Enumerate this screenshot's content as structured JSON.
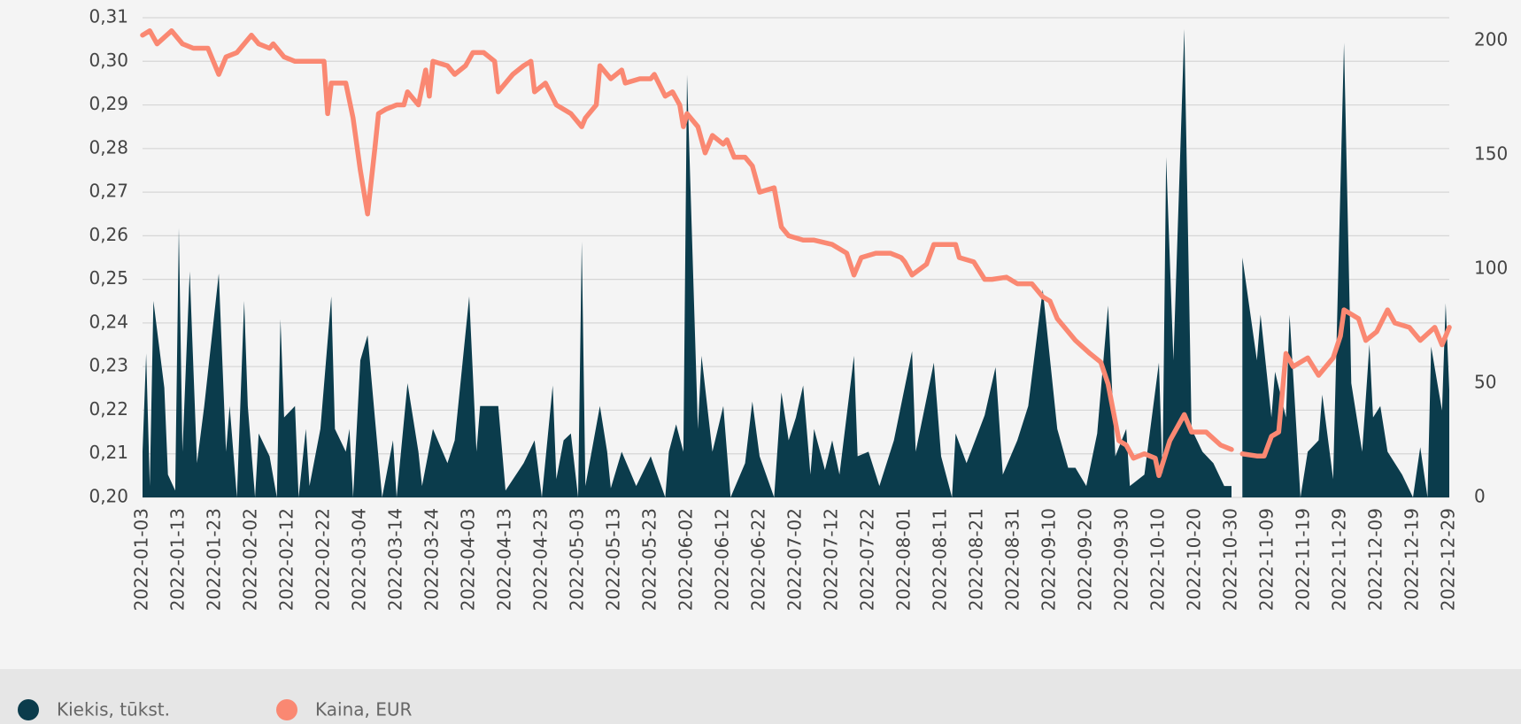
{
  "chart_data": {
    "type": "area-line",
    "xlim": [
      "2022-01-03",
      "2022-12-29"
    ],
    "xticks": [
      "2022-01-03",
      "2022-01-13",
      "2022-01-23",
      "2022-02-02",
      "2022-02-12",
      "2022-02-22",
      "2022-03-04",
      "2022-03-14",
      "2022-03-24",
      "2022-04-03",
      "2022-04-13",
      "2022-04-23",
      "2022-05-03",
      "2022-05-13",
      "2022-05-23",
      "2022-06-02",
      "2022-06-12",
      "2022-06-22",
      "2022-07-02",
      "2022-07-12",
      "2022-07-22",
      "2022-08-01",
      "2022-08-11",
      "2022-08-21",
      "2022-08-31",
      "2022-09-10",
      "2022-09-20",
      "2022-09-30",
      "2022-10-10",
      "2022-10-20",
      "2022-10-30",
      "2022-11-09",
      "2022-11-19",
      "2022-11-29",
      "2022-12-09",
      "2022-12-19",
      "2022-12-29"
    ],
    "ylim": [
      0.2,
      0.31
    ],
    "yticks": [
      {
        "value": 0.2,
        "label": "0,20"
      },
      {
        "value": 0.21,
        "label": "0,21"
      },
      {
        "value": 0.22,
        "label": "0,22"
      },
      {
        "value": 0.23,
        "label": "0,23"
      },
      {
        "value": 0.24,
        "label": "0,24"
      },
      {
        "value": 0.25,
        "label": "0,25"
      },
      {
        "value": 0.26,
        "label": "0,26"
      },
      {
        "value": 0.27,
        "label": "0,27"
      },
      {
        "value": 0.28,
        "label": "0,28"
      },
      {
        "value": 0.29,
        "label": "0,29"
      },
      {
        "value": 0.3,
        "label": "0,30"
      },
      {
        "value": 0.31,
        "label": "0,31"
      }
    ],
    "y2lim": [
      0,
      210
    ],
    "y2ticks": [
      0,
      50,
      100,
      150,
      200
    ],
    "grid": true,
    "legend": "bottom-left",
    "series": [
      {
        "name": "Kiekis, tūkst.",
        "color": "#0b3c4c",
        "kind": "area",
        "axis": "y2",
        "x": [
          "2022-01-03",
          "2022-01-04",
          "2022-01-05",
          "2022-01-06",
          "2022-01-09",
          "2022-01-10",
          "2022-01-12",
          "2022-01-13",
          "2022-01-14",
          "2022-01-16",
          "2022-01-18",
          "2022-01-20",
          "2022-01-24",
          "2022-01-26",
          "2022-01-27",
          "2022-01-29",
          "2022-01-31",
          "2022-02-01",
          "2022-02-03",
          "2022-02-04",
          "2022-02-07",
          "2022-02-09",
          "2022-02-10",
          "2022-02-11",
          "2022-02-14",
          "2022-02-15",
          "2022-02-17",
          "2022-02-18",
          "2022-02-21",
          "2022-02-24",
          "2022-02-25",
          "2022-02-28",
          "2022-03-01",
          "2022-03-02",
          "2022-03-04",
          "2022-03-06",
          "2022-03-08",
          "2022-03-10",
          "2022-03-13",
          "2022-03-14",
          "2022-03-17",
          "2022-03-20",
          "2022-03-21",
          "2022-03-24",
          "2022-03-28",
          "2022-03-30",
          "2022-04-03",
          "2022-04-05",
          "2022-04-06",
          "2022-04-11",
          "2022-04-13",
          "2022-04-18",
          "2022-04-21",
          "2022-04-23",
          "2022-04-26",
          "2022-04-27",
          "2022-04-29",
          "2022-05-01",
          "2022-05-03",
          "2022-05-04",
          "2022-05-05",
          "2022-05-09",
          "2022-05-11",
          "2022-05-12",
          "2022-05-15",
          "2022-05-19",
          "2022-05-23",
          "2022-05-27",
          "2022-05-28",
          "2022-05-30",
          "2022-06-01",
          "2022-06-02",
          "2022-06-05",
          "2022-06-06",
          "2022-06-09",
          "2022-06-12",
          "2022-06-14",
          "2022-06-18",
          "2022-06-20",
          "2022-06-22",
          "2022-06-26",
          "2022-06-28",
          "2022-06-30",
          "2022-07-02",
          "2022-07-04",
          "2022-07-06",
          "2022-07-07",
          "2022-07-10",
          "2022-07-12",
          "2022-07-14",
          "2022-07-18",
          "2022-07-19",
          "2022-07-22",
          "2022-07-25",
          "2022-07-29",
          "2022-08-03",
          "2022-08-04",
          "2022-08-09",
          "2022-08-11",
          "2022-08-14",
          "2022-08-15",
          "2022-08-18",
          "2022-08-23",
          "2022-08-26",
          "2022-08-28",
          "2022-09-01",
          "2022-09-04",
          "2022-09-08",
          "2022-09-12",
          "2022-09-15",
          "2022-09-17",
          "2022-09-20",
          "2022-09-23",
          "2022-09-26",
          "2022-09-28",
          "2022-10-01",
          "2022-10-02",
          "2022-10-06",
          "2022-10-10",
          "2022-10-11",
          "2022-10-12",
          "2022-10-14",
          "2022-10-17",
          "2022-10-19",
          "2022-10-22",
          "2022-10-25",
          "2022-10-28",
          "2022-10-30",
          "2022-10-31",
          "2022-11-02",
          "2022-11-06",
          "2022-11-07",
          "2022-11-10",
          "2022-11-11",
          "2022-11-14",
          "2022-11-15",
          "2022-11-18",
          "2022-11-20",
          "2022-11-23",
          "2022-11-24",
          "2022-11-27",
          "2022-11-30",
          "2022-12-02",
          "2022-12-05",
          "2022-12-07",
          "2022-12-08",
          "2022-12-10",
          "2022-12-12",
          "2022-12-16",
          "2022-12-19",
          "2022-12-21",
          "2022-12-23",
          "2022-12-24",
          "2022-12-27",
          "2022-12-28",
          "2022-12-29"
        ],
        "values": [
          20,
          63,
          5,
          86,
          48,
          10,
          3,
          118,
          20,
          99,
          15,
          40,
          98,
          20,
          40,
          0,
          86,
          40,
          0,
          28,
          18,
          0,
          78,
          35,
          40,
          0,
          30,
          5,
          30,
          88,
          30,
          20,
          30,
          0,
          60,
          71,
          35,
          0,
          25,
          0,
          50,
          20,
          5,
          30,
          15,
          25,
          88,
          20,
          40,
          40,
          3,
          15,
          25,
          0,
          49,
          8,
          25,
          28,
          0,
          112,
          5,
          40,
          20,
          4,
          20,
          5,
          18,
          0,
          20,
          32,
          20,
          185,
          30,
          62,
          20,
          40,
          0,
          15,
          42,
          18,
          0,
          46,
          25,
          35,
          49,
          10,
          30,
          12,
          25,
          10,
          62,
          18,
          20,
          5,
          25,
          64,
          20,
          59,
          18,
          0,
          28,
          15,
          36,
          57,
          10,
          25,
          40,
          91,
          30,
          13,
          13,
          5,
          28,
          84,
          18,
          30,
          5,
          10,
          59,
          10,
          149,
          60,
          205,
          30,
          20,
          15,
          5,
          5,
          null,
          105,
          60,
          80,
          35,
          55,
          35,
          80,
          0,
          20,
          25,
          45,
          8,
          199,
          50,
          20,
          67,
          35,
          40,
          20,
          10,
          0,
          22,
          0,
          66,
          38,
          85,
          47
        ]
      },
      {
        "name": "Kaina, EUR",
        "color": "#fa8872",
        "kind": "line",
        "x": [
          "2022-01-03",
          "2022-01-05",
          "2022-01-07",
          "2022-01-11",
          "2022-01-14",
          "2022-01-17",
          "2022-01-21",
          "2022-01-24",
          "2022-01-26",
          "2022-01-29",
          "2022-02-02",
          "2022-02-04",
          "2022-02-07",
          "2022-02-08",
          "2022-02-11",
          "2022-02-14",
          "2022-02-22",
          "2022-02-23",
          "2022-02-24",
          "2022-02-28",
          "2022-03-02",
          "2022-03-04",
          "2022-03-06",
          "2022-03-08",
          "2022-03-09",
          "2022-03-11",
          "2022-03-14",
          "2022-03-16",
          "2022-03-17",
          "2022-03-20",
          "2022-03-22",
          "2022-03-23",
          "2022-03-24",
          "2022-03-28",
          "2022-03-30",
          "2022-04-02",
          "2022-04-04",
          "2022-04-07",
          "2022-04-10",
          "2022-04-11",
          "2022-04-15",
          "2022-04-18",
          "2022-04-20",
          "2022-04-21",
          "2022-04-24",
          "2022-04-27",
          "2022-05-01",
          "2022-05-04",
          "2022-05-05",
          "2022-05-08",
          "2022-05-09",
          "2022-05-12",
          "2022-05-15",
          "2022-05-16",
          "2022-05-20",
          "2022-05-23",
          "2022-05-24",
          "2022-05-27",
          "2022-05-29",
          "2022-05-31",
          "2022-06-01",
          "2022-06-02",
          "2022-06-05",
          "2022-06-07",
          "2022-06-09",
          "2022-06-12",
          "2022-06-13",
          "2022-06-15",
          "2022-06-18",
          "2022-06-20",
          "2022-06-22",
          "2022-06-26",
          "2022-06-28",
          "2022-06-30",
          "2022-07-04",
          "2022-07-07",
          "2022-07-12",
          "2022-07-16",
          "2022-07-18",
          "2022-07-20",
          "2022-07-24",
          "2022-07-28",
          "2022-07-31",
          "2022-08-01",
          "2022-08-03",
          "2022-08-07",
          "2022-08-09",
          "2022-08-15",
          "2022-08-16",
          "2022-08-20",
          "2022-08-23",
          "2022-08-25",
          "2022-08-29",
          "2022-09-01",
          "2022-09-05",
          "2022-09-08",
          "2022-09-10",
          "2022-09-12",
          "2022-09-17",
          "2022-09-21",
          "2022-09-24",
          "2022-09-26",
          "2022-09-29",
          "2022-10-01",
          "2022-10-03",
          "2022-10-06",
          "2022-10-09",
          "2022-10-10",
          "2022-10-13",
          "2022-10-17",
          "2022-10-19",
          "2022-10-23",
          "2022-10-27",
          "2022-10-30",
          "2022-10-31",
          "2022-11-02",
          "2022-11-06",
          "2022-11-08",
          "2022-11-10",
          "2022-11-12",
          "2022-11-14",
          "2022-11-16",
          "2022-11-20",
          "2022-11-23",
          "2022-11-27",
          "2022-11-29",
          "2022-11-30",
          "2022-12-04",
          "2022-12-06",
          "2022-12-09",
          "2022-12-12",
          "2022-12-14",
          "2022-12-18",
          "2022-12-21",
          "2022-12-25",
          "2022-12-27",
          "2022-12-29"
        ],
        "values": [
          0.306,
          0.307,
          0.304,
          0.307,
          0.304,
          0.303,
          0.303,
          0.297,
          0.301,
          0.302,
          0.306,
          0.304,
          0.303,
          0.304,
          0.301,
          0.3,
          0.3,
          0.288,
          0.295,
          0.295,
          0.287,
          0.275,
          0.265,
          0.28,
          0.288,
          0.289,
          0.29,
          0.29,
          0.293,
          0.29,
          0.298,
          0.292,
          0.3,
          0.299,
          0.297,
          0.299,
          0.302,
          0.302,
          0.3,
          0.293,
          0.297,
          0.299,
          0.3,
          0.293,
          0.295,
          0.29,
          0.288,
          0.285,
          0.287,
          0.29,
          0.299,
          0.296,
          0.298,
          0.295,
          0.296,
          0.296,
          0.297,
          0.292,
          0.293,
          0.29,
          0.285,
          0.288,
          0.285,
          0.279,
          0.283,
          0.281,
          0.282,
          0.278,
          0.278,
          0.276,
          0.27,
          0.271,
          0.262,
          0.26,
          0.259,
          0.259,
          0.258,
          0.256,
          0.251,
          0.255,
          0.256,
          0.256,
          0.255,
          0.254,
          0.251,
          0.2535,
          0.258,
          0.258,
          0.255,
          0.254,
          0.25,
          0.25,
          0.2505,
          0.249,
          0.249,
          0.246,
          0.245,
          0.241,
          0.236,
          0.233,
          0.231,
          0.226,
          0.213,
          0.212,
          0.209,
          0.21,
          0.209,
          0.205,
          0.213,
          0.219,
          0.215,
          0.215,
          0.212,
          0.211,
          null,
          0.21,
          0.2095,
          0.2095,
          0.214,
          0.215,
          0.233,
          0.23,
          0.232,
          0.228,
          0.232,
          0.237,
          0.243,
          0.241,
          0.236,
          0.238,
          0.243,
          0.24,
          0.239,
          0.236,
          0.239,
          0.235,
          0.239
        ]
      }
    ]
  }
}
